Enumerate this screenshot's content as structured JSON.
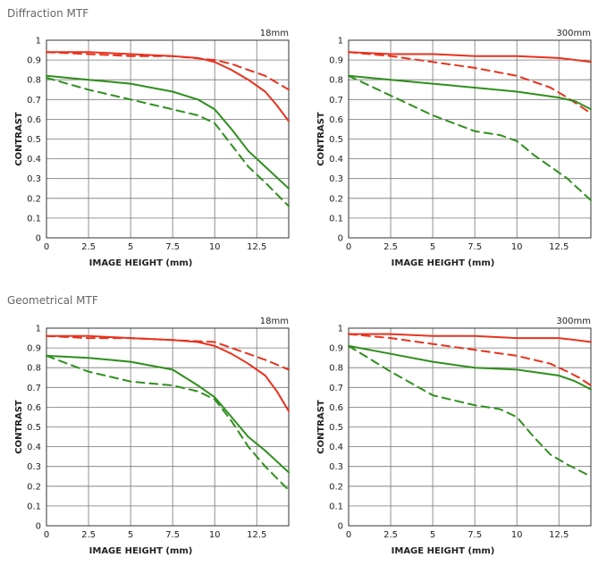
{
  "sections": {
    "diffraction": "Diffraction MTF",
    "geometrical": "Geometrical MTF"
  },
  "colors": {
    "red": "#e8321e",
    "green": "#2f8f1e",
    "grid": "#777777"
  },
  "chart_data": [
    {
      "type": "line",
      "title": "18mm",
      "xlabel": "IMAGE HEIGHT (mm)",
      "ylabel": "CONTRAST",
      "xlim": [
        0,
        14.4
      ],
      "ylim": [
        0,
        1
      ],
      "xticks": [
        "0",
        "2.5",
        "5",
        "7.5",
        "10",
        "12.5"
      ],
      "yticks": [
        "0",
        "0.1",
        "0.2",
        "0.3",
        "0.4",
        "0.5",
        "0.6",
        "0.7",
        "0.8",
        "0.9",
        "1"
      ],
      "grid": true,
      "series": [
        {
          "color": "red",
          "dash": false,
          "x": [
            0,
            2.5,
            5,
            7.5,
            9,
            10,
            11,
            12,
            13,
            13.7,
            14.4
          ],
          "y": [
            0.94,
            0.94,
            0.93,
            0.92,
            0.91,
            0.89,
            0.85,
            0.8,
            0.74,
            0.67,
            0.59
          ]
        },
        {
          "color": "red",
          "dash": true,
          "x": [
            0,
            2.5,
            5,
            7.5,
            10,
            11,
            12,
            13,
            14.4
          ],
          "y": [
            0.94,
            0.93,
            0.92,
            0.92,
            0.9,
            0.88,
            0.85,
            0.82,
            0.75
          ]
        },
        {
          "color": "green",
          "dash": false,
          "x": [
            0,
            2.5,
            5,
            7.5,
            9,
            10,
            11,
            12,
            13,
            14.4
          ],
          "y": [
            0.82,
            0.8,
            0.78,
            0.74,
            0.7,
            0.65,
            0.55,
            0.44,
            0.36,
            0.25
          ]
        },
        {
          "color": "green",
          "dash": true,
          "x": [
            0,
            2.5,
            5,
            7.5,
            9,
            10,
            11,
            12,
            13,
            14.4
          ],
          "y": [
            0.81,
            0.75,
            0.7,
            0.65,
            0.62,
            0.58,
            0.47,
            0.36,
            0.28,
            0.16
          ]
        }
      ]
    },
    {
      "type": "line",
      "title": "300mm",
      "xlabel": "IMAGE HEIGHT (mm)",
      "ylabel": "CONTRAST",
      "xlim": [
        0,
        14.4
      ],
      "ylim": [
        0,
        1
      ],
      "xticks": [
        "0",
        "2.5",
        "5",
        "7.5",
        "10",
        "12.5"
      ],
      "yticks": [
        "0",
        "0.1",
        "0.2",
        "0.3",
        "0.4",
        "0.5",
        "0.6",
        "0.7",
        "0.8",
        "0.9",
        "1"
      ],
      "grid": true,
      "series": [
        {
          "color": "red",
          "dash": false,
          "x": [
            0,
            2.5,
            5,
            7.5,
            10,
            12.5,
            13.5,
            14.4
          ],
          "y": [
            0.94,
            0.93,
            0.93,
            0.92,
            0.92,
            0.91,
            0.9,
            0.89
          ]
        },
        {
          "color": "red",
          "dash": true,
          "x": [
            0,
            2.5,
            5,
            7.5,
            10,
            12,
            13,
            13.7,
            14.4
          ],
          "y": [
            0.94,
            0.92,
            0.89,
            0.86,
            0.82,
            0.76,
            0.71,
            0.67,
            0.63
          ]
        },
        {
          "color": "green",
          "dash": false,
          "x": [
            0,
            2.5,
            5,
            7.5,
            10,
            12.5,
            13.5,
            14.4
          ],
          "y": [
            0.82,
            0.8,
            0.78,
            0.76,
            0.74,
            0.71,
            0.69,
            0.65
          ]
        },
        {
          "color": "green",
          "dash": true,
          "x": [
            0,
            2.5,
            5,
            7.5,
            9,
            10,
            11,
            12,
            13,
            14.4
          ],
          "y": [
            0.82,
            0.72,
            0.62,
            0.54,
            0.52,
            0.49,
            0.42,
            0.36,
            0.3,
            0.19
          ]
        }
      ]
    },
    {
      "type": "line",
      "title": "18mm",
      "xlabel": "IMAGE HEIGHT (mm)",
      "ylabel": "CONTRAST",
      "xlim": [
        0,
        14.4
      ],
      "ylim": [
        0,
        1
      ],
      "xticks": [
        "0",
        "2.5",
        "5",
        "7.5",
        "10",
        "12.5"
      ],
      "yticks": [
        "0",
        "0.1",
        "0.2",
        "0.3",
        "0.4",
        "0.5",
        "0.6",
        "0.7",
        "0.8",
        "0.9",
        "1"
      ],
      "grid": true,
      "series": [
        {
          "color": "red",
          "dash": false,
          "x": [
            0,
            2.5,
            5,
            7.5,
            9,
            10,
            11,
            12,
            13,
            13.7,
            14.4
          ],
          "y": [
            0.96,
            0.96,
            0.95,
            0.94,
            0.93,
            0.91,
            0.87,
            0.82,
            0.76,
            0.68,
            0.58
          ]
        },
        {
          "color": "red",
          "dash": true,
          "x": [
            0,
            2.5,
            5,
            7.5,
            10,
            11,
            12,
            13,
            14.4
          ],
          "y": [
            0.96,
            0.95,
            0.95,
            0.94,
            0.93,
            0.9,
            0.87,
            0.84,
            0.79
          ]
        },
        {
          "color": "green",
          "dash": false,
          "x": [
            0,
            2.5,
            5,
            7.5,
            9,
            10,
            11,
            12,
            13,
            14.4
          ],
          "y": [
            0.86,
            0.85,
            0.83,
            0.79,
            0.71,
            0.65,
            0.55,
            0.45,
            0.38,
            0.27
          ]
        },
        {
          "color": "green",
          "dash": true,
          "x": [
            0,
            2.5,
            5,
            7.5,
            9,
            10,
            11,
            12,
            13,
            14.4
          ],
          "y": [
            0.86,
            0.78,
            0.73,
            0.71,
            0.68,
            0.64,
            0.53,
            0.4,
            0.3,
            0.18
          ]
        }
      ]
    },
    {
      "type": "line",
      "title": "300mm",
      "xlabel": "IMAGE HEIGHT (mm)",
      "ylabel": "CONTRAST",
      "xlim": [
        0,
        14.4
      ],
      "ylim": [
        0,
        1
      ],
      "xticks": [
        "0",
        "2.5",
        "5",
        "7.5",
        "10",
        "12.5"
      ],
      "yticks": [
        "0",
        "0.1",
        "0.2",
        "0.3",
        "0.4",
        "0.5",
        "0.6",
        "0.7",
        "0.8",
        "0.9",
        "1"
      ],
      "grid": true,
      "series": [
        {
          "color": "red",
          "dash": false,
          "x": [
            0,
            2.5,
            5,
            7.5,
            10,
            12.5,
            13.5,
            14.4
          ],
          "y": [
            0.97,
            0.97,
            0.96,
            0.96,
            0.95,
            0.95,
            0.94,
            0.93
          ]
        },
        {
          "color": "red",
          "dash": true,
          "x": [
            0,
            2.5,
            5,
            7.5,
            10,
            12,
            13,
            13.7,
            14.4
          ],
          "y": [
            0.97,
            0.95,
            0.92,
            0.89,
            0.86,
            0.82,
            0.78,
            0.75,
            0.71
          ]
        },
        {
          "color": "green",
          "dash": false,
          "x": [
            0,
            2.5,
            5,
            7.5,
            10,
            12.5,
            13.5,
            14.4
          ],
          "y": [
            0.91,
            0.87,
            0.83,
            0.8,
            0.79,
            0.76,
            0.73,
            0.69
          ]
        },
        {
          "color": "green",
          "dash": true,
          "x": [
            0,
            2.5,
            5,
            7.5,
            9,
            10,
            11,
            12,
            13,
            14.4
          ],
          "y": [
            0.91,
            0.78,
            0.66,
            0.61,
            0.59,
            0.55,
            0.45,
            0.36,
            0.31,
            0.25
          ]
        }
      ]
    }
  ]
}
